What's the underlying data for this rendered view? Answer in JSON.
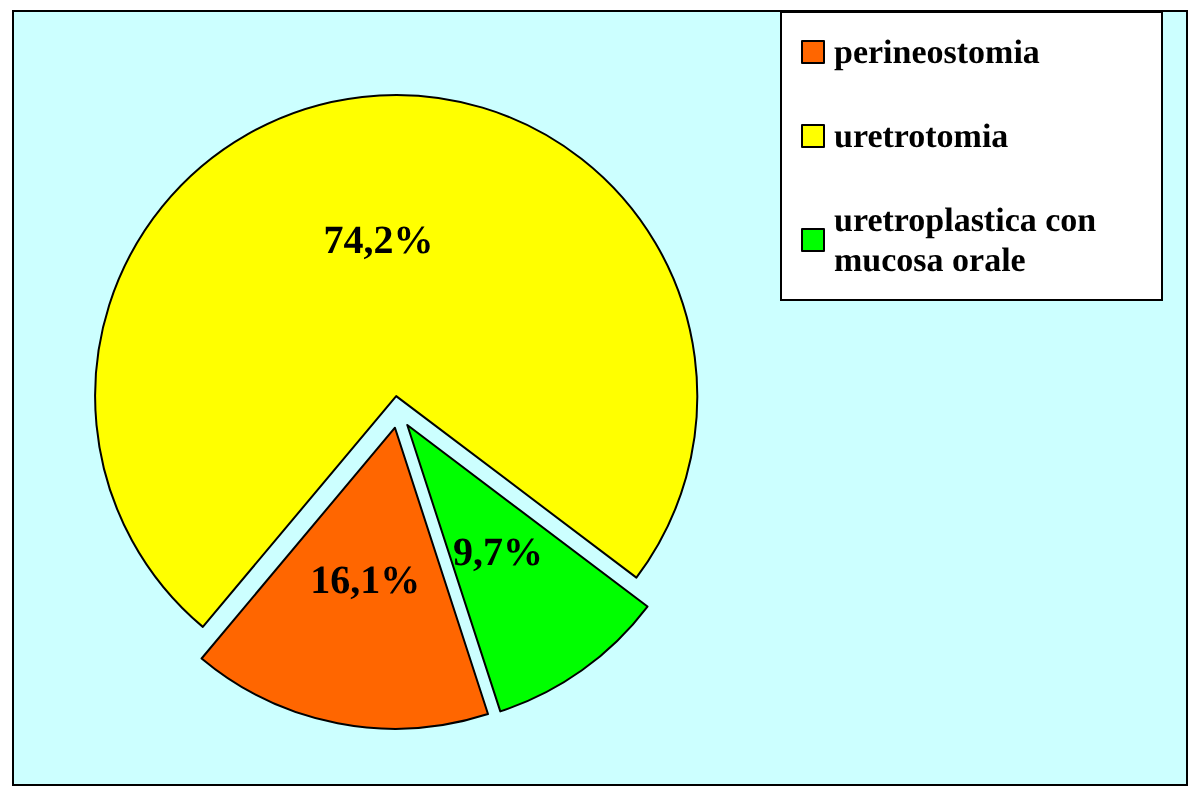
{
  "chart_data": {
    "type": "pie",
    "categories": [
      "perineostomia",
      "uretrotomia",
      "uretroplastica con mucosa orale"
    ],
    "values": [
      16.1,
      74.2,
      9.7
    ],
    "colors": [
      "#ff6600",
      "#ffff00",
      "#00ff00"
    ],
    "value_labels": [
      "16,1%",
      "74,2%",
      "9,7%"
    ],
    "legend": "top right"
  }
}
